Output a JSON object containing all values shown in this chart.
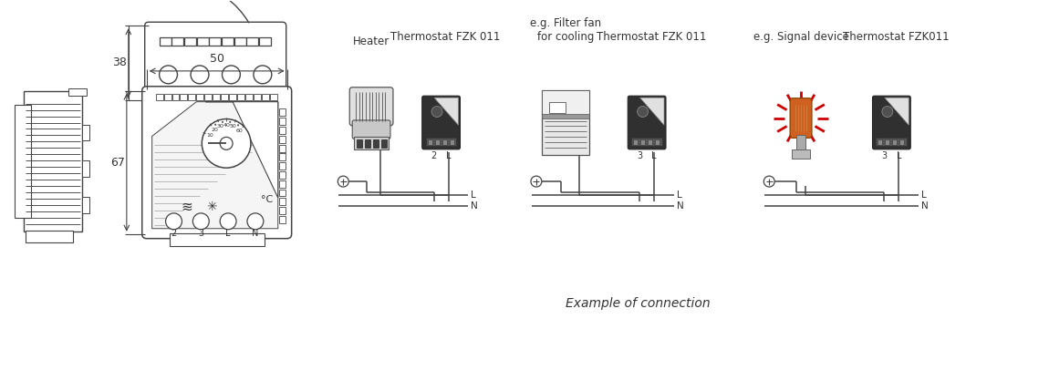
{
  "bg_color": "#ffffff",
  "line_color": "#444444",
  "dim_color": "#444444",
  "text_color": "#333333",
  "red_color": "#cc0000",
  "orange_color": "#d06020",
  "gray_color": "#888888",
  "light_gray": "#bbbbbb",
  "mid_gray": "#999999",
  "dark_gray": "#444444",
  "title": "Example of connection",
  "labels": {
    "heater": "Heater",
    "thermo1": "Thermostat FZK 011",
    "fan": "e.g. Filter fan\nfor cooling",
    "thermo2": "Thermostat FZK 011",
    "signal": "e.g. Signal device",
    "thermo3": "Thermostat FZK011"
  },
  "dim_labels": {
    "38": "38",
    "50": "50",
    "67": "67"
  }
}
